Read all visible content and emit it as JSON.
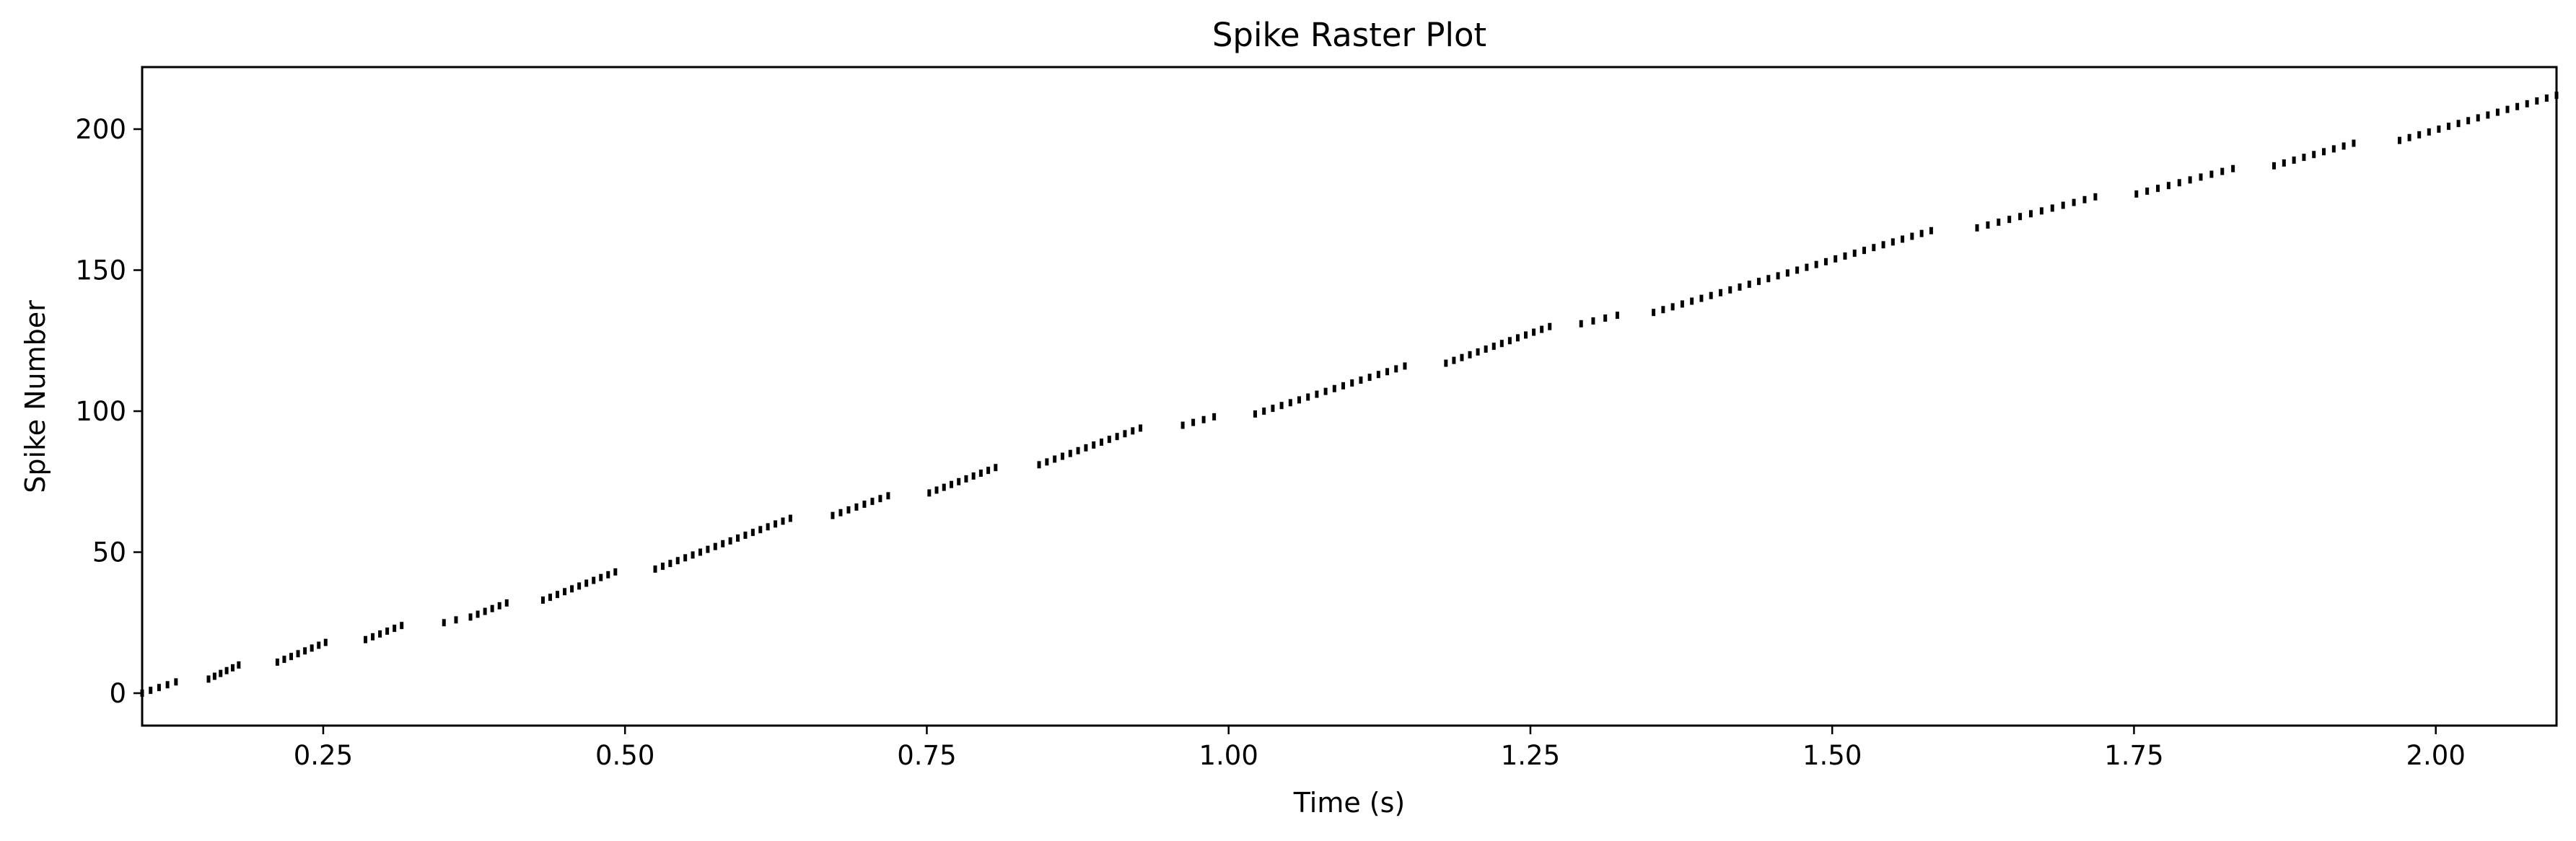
{
  "chart_data": {
    "type": "scatter",
    "marker": "vertical-tick",
    "title": "Spike Raster Plot",
    "xlabel": "Time (s)",
    "ylabel": "Spike Number",
    "xlim": [
      0.1,
      2.1
    ],
    "ylim": [
      -11.5,
      222
    ],
    "xticks": [
      0.25,
      0.5,
      0.75,
      1.0,
      1.25,
      1.5,
      1.75,
      2.0
    ],
    "xtick_labels": [
      "0.25",
      "0.50",
      "0.75",
      "1.00",
      "1.25",
      "1.50",
      "1.75",
      "2.00"
    ],
    "yticks": [
      0,
      50,
      100,
      150,
      200
    ],
    "ytick_labels": [
      "0",
      "50",
      "100",
      "150",
      "200"
    ],
    "grid": false,
    "legend": "none",
    "color": "#000000",
    "bursts": [
      {
        "t_start": 0.1,
        "t_end": 0.128,
        "first": 0,
        "last": 4
      },
      {
        "t_start": 0.155,
        "t_end": 0.18,
        "first": 5,
        "last": 10
      },
      {
        "t_start": 0.212,
        "t_end": 0.252,
        "first": 11,
        "last": 18
      },
      {
        "t_start": 0.285,
        "t_end": 0.315,
        "first": 19,
        "last": 24
      },
      {
        "t_start": 0.35,
        "t_end": 0.36,
        "first": 25,
        "last": 26
      },
      {
        "t_start": 0.372,
        "t_end": 0.402,
        "first": 27,
        "last": 32
      },
      {
        "t_start": 0.432,
        "t_end": 0.492,
        "first": 33,
        "last": 43
      },
      {
        "t_start": 0.525,
        "t_end": 0.637,
        "first": 44,
        "last": 62
      },
      {
        "t_start": 0.672,
        "t_end": 0.718,
        "first": 63,
        "last": 70
      },
      {
        "t_start": 0.752,
        "t_end": 0.807,
        "first": 71,
        "last": 80
      },
      {
        "t_start": 0.843,
        "t_end": 0.927,
        "first": 81,
        "last": 94
      },
      {
        "t_start": 0.962,
        "t_end": 0.988,
        "first": 95,
        "last": 98
      },
      {
        "t_start": 1.022,
        "t_end": 1.146,
        "first": 99,
        "last": 116
      },
      {
        "t_start": 1.18,
        "t_end": 1.266,
        "first": 117,
        "last": 130
      },
      {
        "t_start": 1.292,
        "t_end": 1.322,
        "first": 131,
        "last": 134
      },
      {
        "t_start": 1.352,
        "t_end": 1.582,
        "first": 135,
        "last": 164
      },
      {
        "t_start": 1.62,
        "t_end": 1.718,
        "first": 165,
        "last": 176
      },
      {
        "t_start": 1.752,
        "t_end": 1.832,
        "first": 177,
        "last": 186
      },
      {
        "t_start": 1.866,
        "t_end": 1.932,
        "first": 187,
        "last": 195
      },
      {
        "t_start": 1.97,
        "t_end": 2.1,
        "first": 196,
        "last": 212
      }
    ]
  }
}
